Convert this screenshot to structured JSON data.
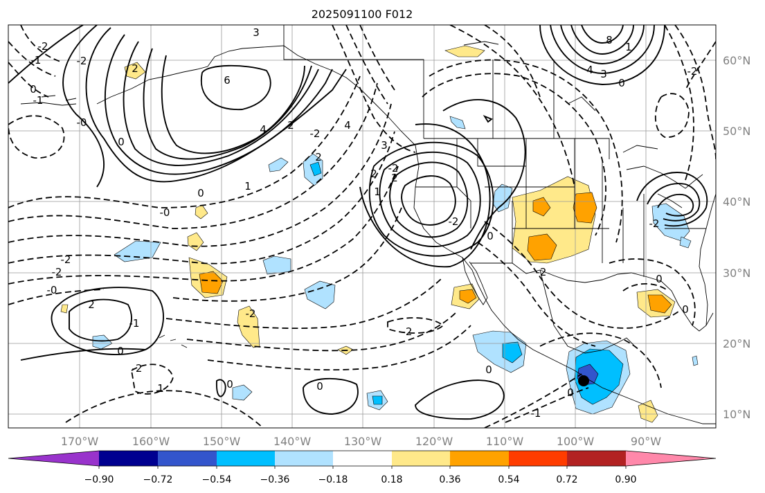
{
  "title": "2025091100 F012",
  "lon_labels": [
    "170°W",
    "160°W",
    "150°W",
    "140°W",
    "130°W",
    "120°W",
    "110°W",
    "100°W",
    "90°W"
  ],
  "lat_labels": [
    "60°N",
    "50°N",
    "40°N",
    "30°N",
    "20°N",
    "10°N"
  ],
  "colorbar": {
    "tick_labels": [
      "−0.90",
      "−0.72",
      "−0.54",
      "−0.36",
      "−0.18",
      "0.18",
      "0.36",
      "0.54",
      "0.72",
      "0.90"
    ],
    "colors": [
      "#9933cc",
      "#000090",
      "#3355cc",
      "#00bfff",
      "#b0e2ff",
      "#ffffff",
      "#ffe98a",
      "#ffa200",
      "#ff3c00",
      "#b22222",
      "#ff88aa"
    ]
  },
  "contour_labels": [
    "-2",
    "-2",
    "0",
    "3",
    "6",
    "4",
    "2",
    "8",
    "4",
    "3",
    "0",
    "1",
    "-2",
    "-1",
    "2",
    "-0",
    "0",
    "-2",
    "3",
    "-0",
    "-2",
    "1",
    "2",
    "-2",
    "0",
    "2",
    "1",
    "-2",
    "-2",
    "-2",
    "0",
    "0",
    "-0",
    "-1",
    "0",
    "1",
    "2",
    "-2",
    "-2",
    "-2",
    "-2",
    "0",
    "0",
    "4",
    "2",
    "0",
    "0",
    "-1",
    "-1",
    "0"
  ],
  "marker": "storm-center-dot"
}
